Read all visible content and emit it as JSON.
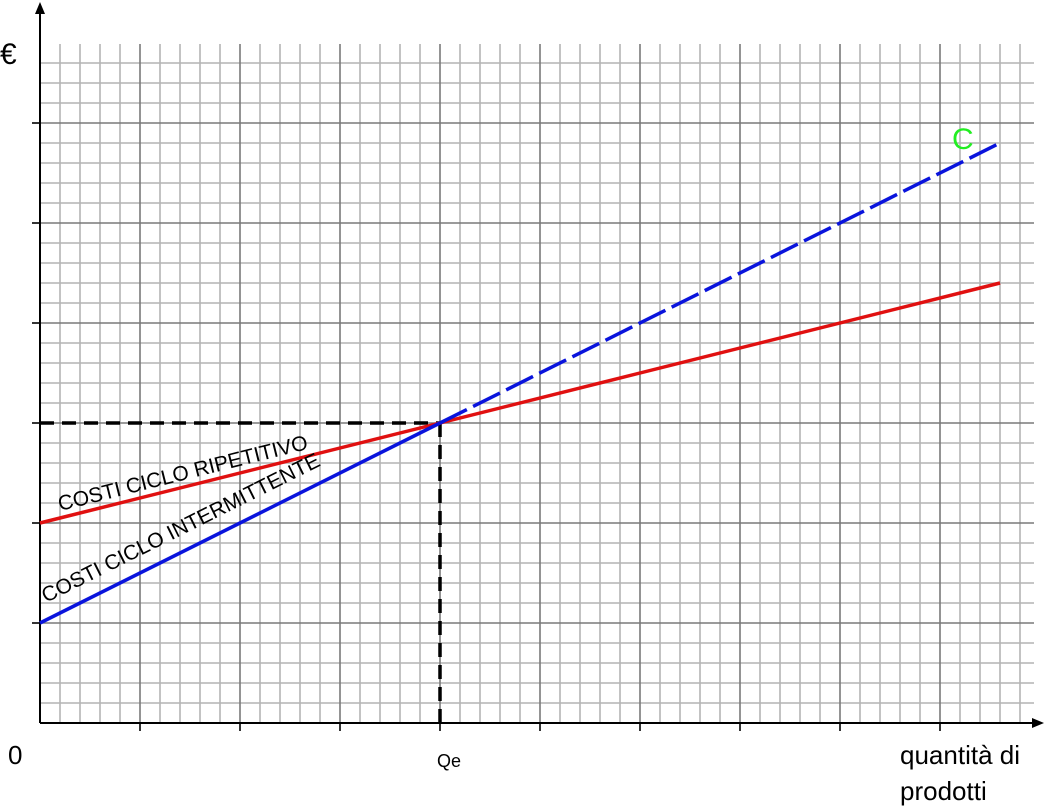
{
  "chart_data": {
    "type": "line",
    "title": "",
    "y_axis_label": "€",
    "x_axis_label_line1": "quantità di",
    "x_axis_label_line2": "prodotti",
    "origin_label": "0",
    "x_tick_labels": [
      {
        "x": 4,
        "label": "Qe"
      }
    ],
    "xlim": [
      0,
      10
    ],
    "ylim": [
      0,
      7
    ],
    "minor_grid_step": 0.2,
    "major_grid_step": 1,
    "grid": true,
    "series": [
      {
        "id": "ripetitivo",
        "label": "COSTI CICLO RIPETITIVO",
        "color": "#e01010",
        "dashed": false,
        "points": [
          [
            0,
            2
          ],
          [
            9.6,
            4.4
          ]
        ]
      },
      {
        "id": "intermittente",
        "label": "COSTI CICLO INTERMITTENTE",
        "color": "#0a14dc",
        "dashed": false,
        "points": [
          [
            0,
            1
          ],
          [
            4,
            3
          ]
        ]
      },
      {
        "id": "intermittente-extension",
        "label": "",
        "color": "#0a14dc",
        "dashed": true,
        "points": [
          [
            4,
            3
          ],
          [
            9.6,
            5.8
          ]
        ]
      }
    ],
    "intersection": {
      "x": 4,
      "y": 3
    },
    "annotations": [
      {
        "text": "C",
        "color": "#22ee22",
        "x": 9.2,
        "y": 5.8
      }
    ]
  }
}
